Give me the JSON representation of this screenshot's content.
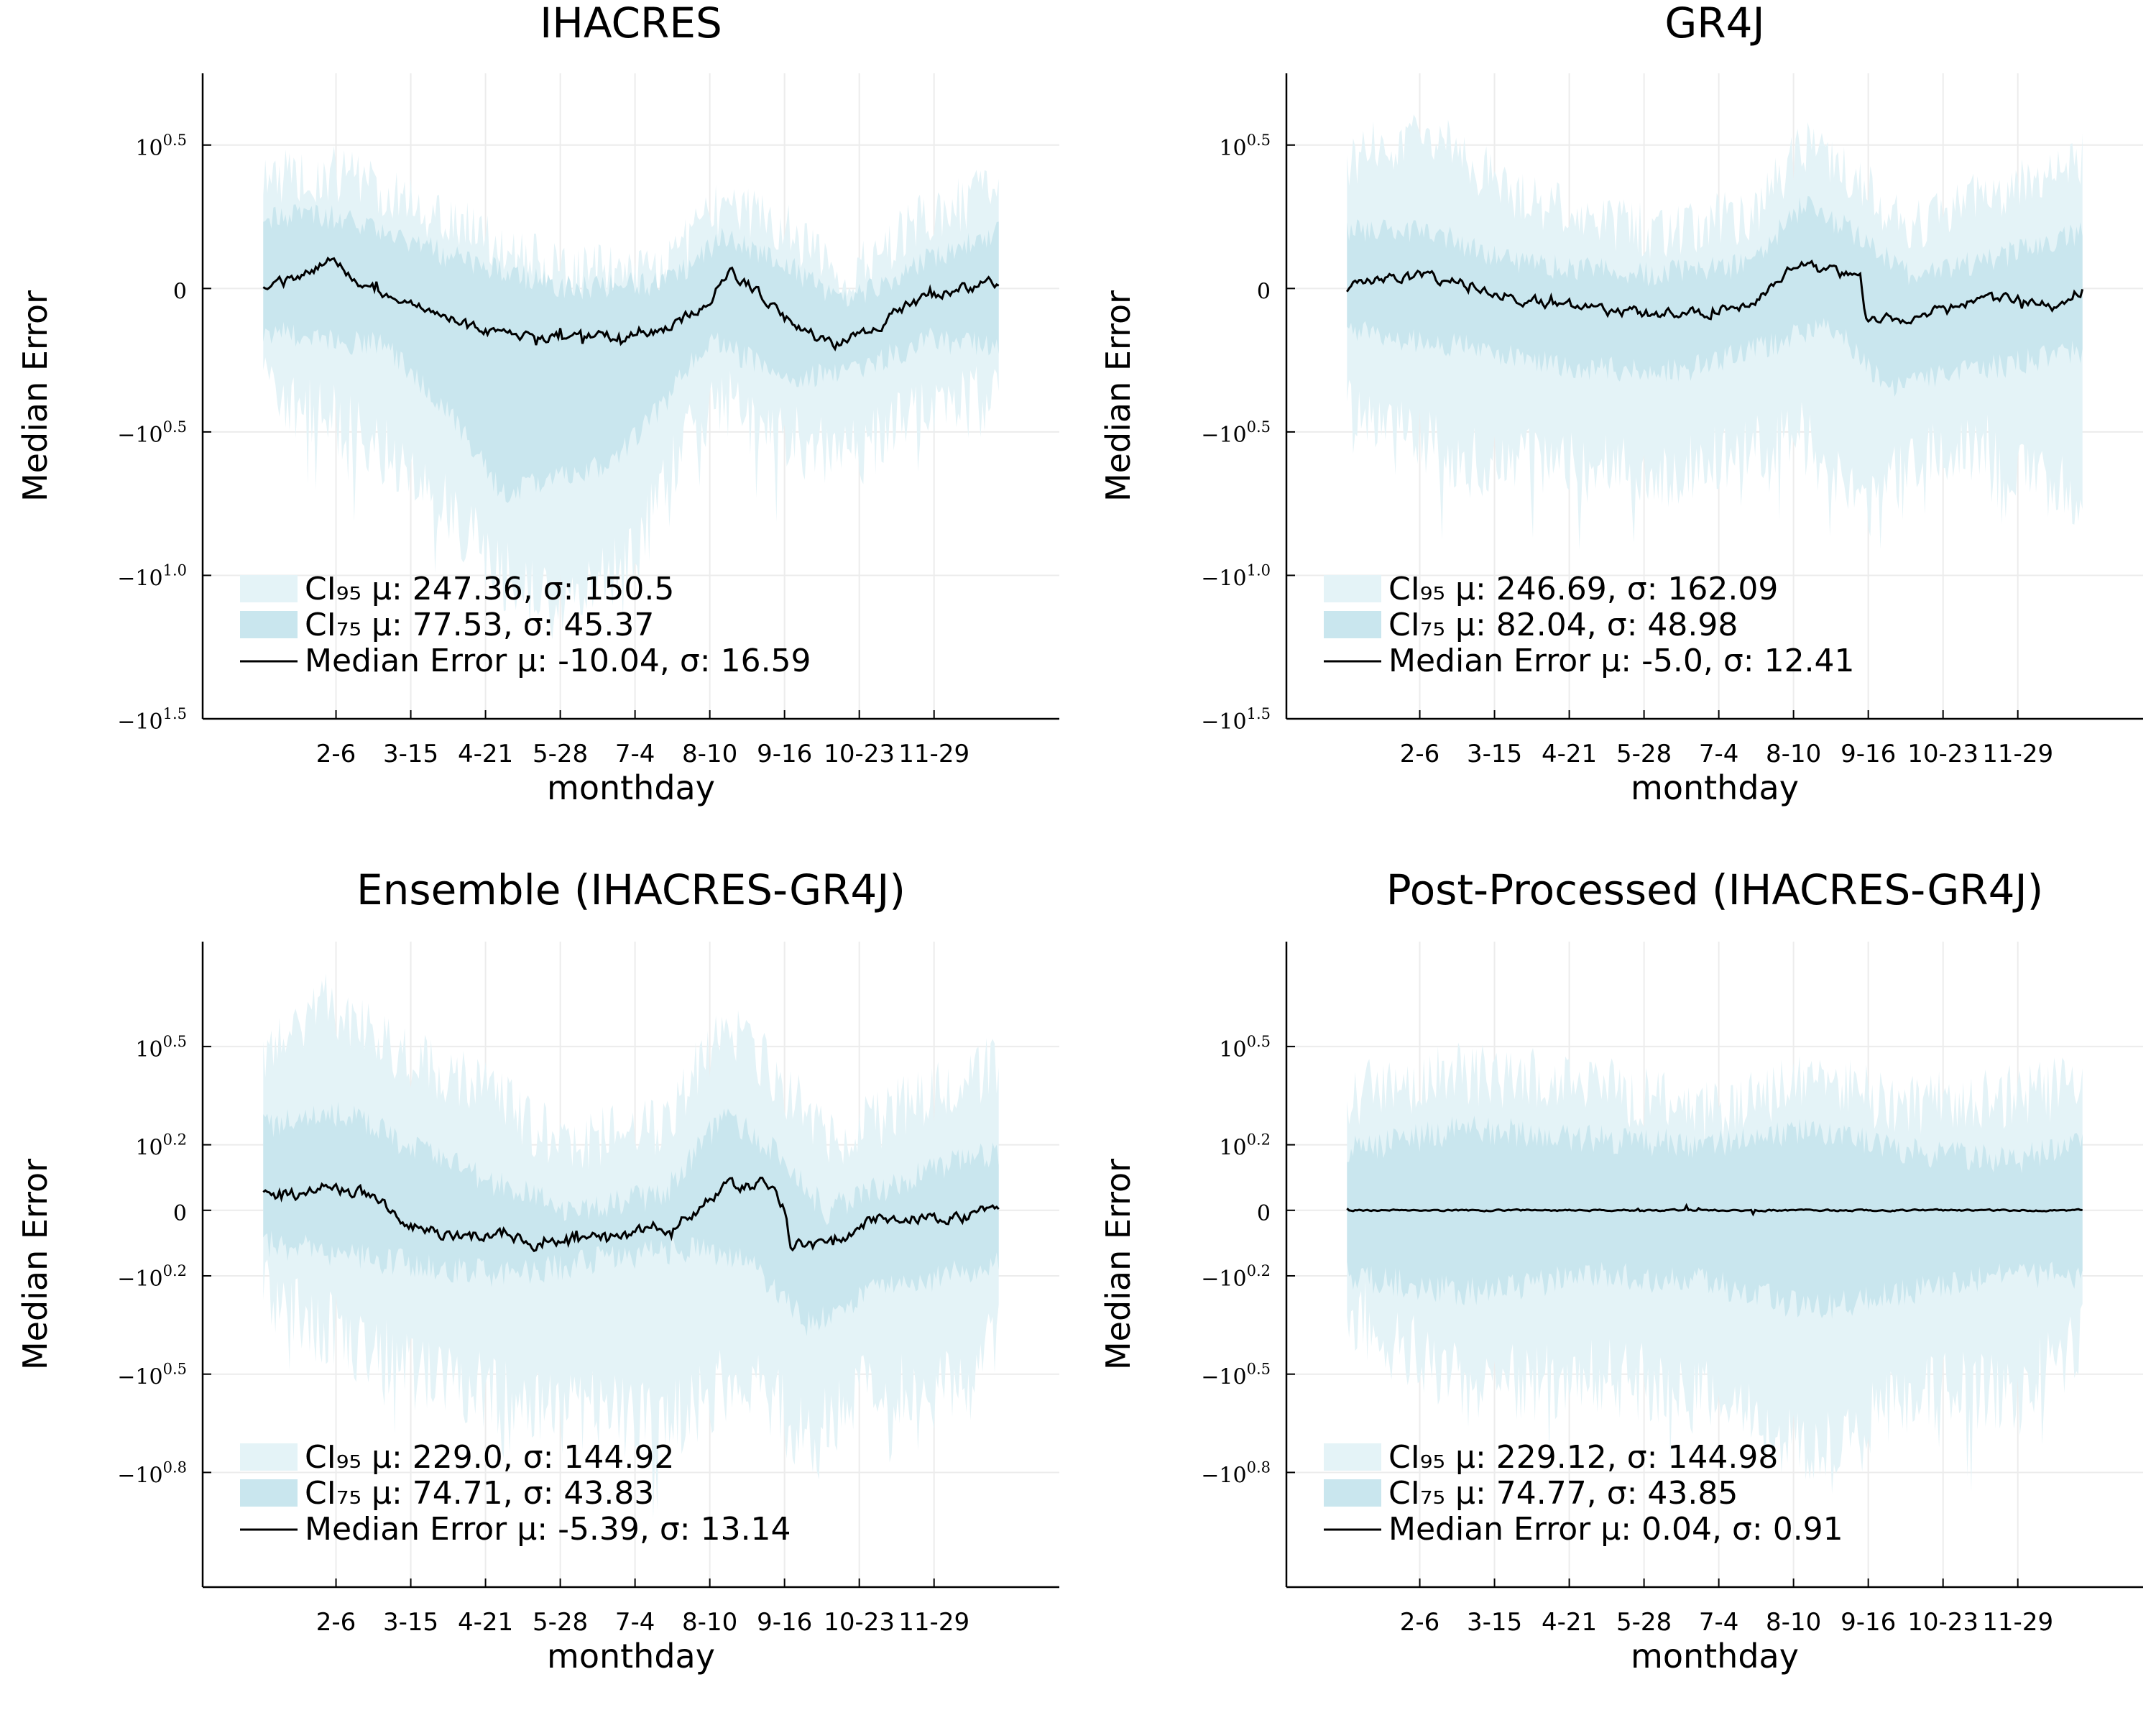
{
  "figure": {
    "xlabel": "monthday",
    "ylabel": "Median Error",
    "x_ticks": [
      "2-6",
      "3-15",
      "4-21",
      "5-28",
      "7-4",
      "8-10",
      "9-16",
      "10-23",
      "11-29"
    ],
    "colors": {
      "ci95": "#e4f3f7",
      "ci75": "#c9e6ee",
      "median": "#000000",
      "grid": "#ececec"
    }
  },
  "chart_data": [
    {
      "type": "area",
      "title": "IHACRES",
      "xlabel": "monthday",
      "ylabel": "Median Error",
      "x_ticks": [
        "2-6",
        "3-15",
        "4-21",
        "5-28",
        "7-4",
        "8-10",
        "9-16",
        "10-23",
        "11-29"
      ],
      "y_ticks": [
        {
          "base": "10",
          "exp": "0.5",
          "neg": false,
          "v": 0.5
        },
        {
          "base": "0",
          "exp": "",
          "neg": false,
          "v": 0
        },
        {
          "base": "−10",
          "exp": "0.5",
          "neg": true,
          "v": -0.5
        },
        {
          "base": "−10",
          "exp": "1.0",
          "neg": true,
          "v": -1.0
        },
        {
          "base": "−10",
          "exp": "1.5",
          "neg": true,
          "v": -1.5
        }
      ],
      "ylim": [
        -1.5,
        0.75
      ],
      "legend": {
        "placement": "bottom-left",
        "ci95": {
          "label": "CI₉₅ μ: 247.36, σ: 150.5"
        },
        "ci75": {
          "label": "CI₇₅ μ: 77.53, σ: 45.37"
        },
        "median": {
          "label": "Median Error μ: -10.04, σ: 16.59"
        }
      },
      "series": {
        "median_knots": [
          [
            1,
            0.0
          ],
          [
            20,
            0.05
          ],
          [
            37,
            0.1
          ],
          [
            50,
            0.0
          ],
          [
            70,
            -0.05
          ],
          [
            90,
            -0.1
          ],
          [
            110,
            -0.15
          ],
          [
            140,
            -0.17
          ],
          [
            170,
            -0.17
          ],
          [
            200,
            -0.14
          ],
          [
            210,
            -0.1
          ],
          [
            222,
            -0.03
          ],
          [
            232,
            0.05
          ],
          [
            242,
            0.01
          ],
          [
            255,
            -0.08
          ],
          [
            270,
            -0.15
          ],
          [
            282,
            -0.2
          ],
          [
            300,
            -0.15
          ],
          [
            320,
            -0.06
          ],
          [
            345,
            0.0
          ],
          [
            365,
            0.02
          ]
        ],
        "ci75_upper": [
          [
            1,
            0.25
          ],
          [
            40,
            0.25
          ],
          [
            90,
            0.12
          ],
          [
            150,
            0.0
          ],
          [
            200,
            0.02
          ],
          [
            230,
            0.18
          ],
          [
            260,
            0.08
          ],
          [
            290,
            -0.05
          ],
          [
            330,
            0.1
          ],
          [
            365,
            0.2
          ]
        ],
        "ci75_lower": [
          [
            1,
            -0.15
          ],
          [
            60,
            -0.2
          ],
          [
            90,
            -0.4
          ],
          [
            120,
            -0.72
          ],
          [
            150,
            -0.65
          ],
          [
            175,
            -0.6
          ],
          [
            200,
            -0.4
          ],
          [
            220,
            -0.18
          ],
          [
            260,
            -0.3
          ],
          [
            290,
            -0.3
          ],
          [
            330,
            -0.18
          ],
          [
            365,
            -0.2
          ]
        ],
        "ci95_upper": [
          [
            1,
            0.38
          ],
          [
            40,
            0.4
          ],
          [
            90,
            0.25
          ],
          [
            150,
            0.05
          ],
          [
            200,
            0.07
          ],
          [
            230,
            0.3
          ],
          [
            260,
            0.2
          ],
          [
            290,
            0.03
          ],
          [
            330,
            0.25
          ],
          [
            365,
            0.35
          ]
        ],
        "ci95_lower": [
          [
            1,
            -0.35
          ],
          [
            50,
            -0.5
          ],
          [
            90,
            -0.75
          ],
          [
            120,
            -1.0
          ],
          [
            145,
            -1.1
          ],
          [
            165,
            -1.05
          ],
          [
            185,
            -0.92
          ],
          [
            200,
            -0.65
          ],
          [
            225,
            -0.38
          ],
          [
            270,
            -0.55
          ],
          [
            300,
            -0.55
          ],
          [
            335,
            -0.38
          ],
          [
            365,
            -0.4
          ]
        ],
        "noise_seed": 11
      }
    },
    {
      "type": "area",
      "title": "GR4J",
      "xlabel": "monthday",
      "ylabel": "Median Error",
      "x_ticks": [
        "2-6",
        "3-15",
        "4-21",
        "5-28",
        "7-4",
        "8-10",
        "9-16",
        "10-23",
        "11-29"
      ],
      "y_ticks": [
        {
          "base": "10",
          "exp": "0.5",
          "neg": false,
          "v": 0.5
        },
        {
          "base": "0",
          "exp": "",
          "neg": false,
          "v": 0
        },
        {
          "base": "−10",
          "exp": "0.5",
          "neg": true,
          "v": -0.5
        },
        {
          "base": "−10",
          "exp": "1.0",
          "neg": true,
          "v": -1.0
        },
        {
          "base": "−10",
          "exp": "1.5",
          "neg": true,
          "v": -1.5
        }
      ],
      "ylim": [
        -1.5,
        0.75
      ],
      "legend": {
        "placement": "bottom-left",
        "ci95": {
          "label": "CI₉₅ μ: 246.69, σ: 162.09"
        },
        "ci75": {
          "label": "CI₇₅ μ: 82.04, σ: 48.98"
        },
        "median": {
          "label": "Median Error μ: -5.0, σ: 12.41"
        }
      },
      "series": {
        "median_knots": [
          [
            1,
            0.0
          ],
          [
            30,
            0.05
          ],
          [
            50,
            0.03
          ],
          [
            70,
            0.0
          ],
          [
            90,
            -0.04
          ],
          [
            120,
            -0.07
          ],
          [
            150,
            -0.09
          ],
          [
            180,
            -0.08
          ],
          [
            200,
            -0.05
          ],
          [
            210,
            0.0
          ],
          [
            222,
            0.08
          ],
          [
            240,
            0.06
          ],
          [
            255,
            0.03
          ],
          [
            258,
            -0.1
          ],
          [
            280,
            -0.12
          ],
          [
            300,
            -0.05
          ],
          [
            330,
            -0.04
          ],
          [
            350,
            -0.06
          ],
          [
            365,
            0.0
          ]
        ],
        "ci75_upper": [
          [
            1,
            0.2
          ],
          [
            40,
            0.2
          ],
          [
            90,
            0.08
          ],
          [
            150,
            0.05
          ],
          [
            200,
            0.08
          ],
          [
            228,
            0.3
          ],
          [
            250,
            0.2
          ],
          [
            280,
            0.05
          ],
          [
            320,
            0.1
          ],
          [
            365,
            0.2
          ]
        ],
        "ci75_lower": [
          [
            1,
            -0.15
          ],
          [
            60,
            -0.2
          ],
          [
            120,
            -0.28
          ],
          [
            170,
            -0.28
          ],
          [
            210,
            -0.2
          ],
          [
            240,
            -0.12
          ],
          [
            270,
            -0.35
          ],
          [
            300,
            -0.3
          ],
          [
            340,
            -0.25
          ],
          [
            365,
            -0.22
          ]
        ],
        "ci95_upper": [
          [
            1,
            0.45
          ],
          [
            40,
            0.55
          ],
          [
            90,
            0.3
          ],
          [
            150,
            0.2
          ],
          [
            200,
            0.25
          ],
          [
            228,
            0.5
          ],
          [
            250,
            0.38
          ],
          [
            280,
            0.22
          ],
          [
            330,
            0.35
          ],
          [
            365,
            0.45
          ]
        ],
        "ci95_lower": [
          [
            1,
            -0.4
          ],
          [
            60,
            -0.6
          ],
          [
            110,
            -0.62
          ],
          [
            160,
            -0.65
          ],
          [
            200,
            -0.55
          ],
          [
            230,
            -0.5
          ],
          [
            258,
            -0.8
          ],
          [
            280,
            -0.6
          ],
          [
            320,
            -0.55
          ],
          [
            365,
            -0.75
          ]
        ],
        "noise_seed": 23
      }
    },
    {
      "type": "area",
      "title": "Ensemble (IHACRES-GR4J)",
      "xlabel": "monthday",
      "ylabel": "Median Error",
      "x_ticks": [
        "2-6",
        "3-15",
        "4-21",
        "5-28",
        "7-4",
        "8-10",
        "9-16",
        "10-23",
        "11-29"
      ],
      "y_ticks": [
        {
          "base": "10",
          "exp": "0.5",
          "neg": false,
          "v": 0.5
        },
        {
          "base": "10",
          "exp": "0.2",
          "neg": false,
          "v": 0.2
        },
        {
          "base": "0",
          "exp": "",
          "neg": false,
          "v": 0
        },
        {
          "base": "−10",
          "exp": "0.2",
          "neg": true,
          "v": -0.2
        },
        {
          "base": "−10",
          "exp": "0.5",
          "neg": true,
          "v": -0.5
        },
        {
          "base": "−10",
          "exp": "0.8",
          "neg": true,
          "v": -0.8
        }
      ],
      "ylim": [
        -1.15,
        0.82
      ],
      "legend": {
        "placement": "bottom-left",
        "ci95": {
          "label": "CI₉₅ μ: 229.0, σ: 144.92"
        },
        "ci75": {
          "label": "CI₇₅ μ: 74.71, σ: 43.83"
        },
        "median": {
          "label": "Median Error μ: -5.39, σ: 13.14"
        }
      },
      "series": {
        "median_knots": [
          [
            1,
            0.05
          ],
          [
            20,
            0.05
          ],
          [
            30,
            0.08
          ],
          [
            50,
            0.05
          ],
          [
            65,
            0.0
          ],
          [
            75,
            -0.05
          ],
          [
            90,
            -0.07
          ],
          [
            120,
            -0.08
          ],
          [
            135,
            -0.1
          ],
          [
            160,
            -0.08
          ],
          [
            180,
            -0.08
          ],
          [
            200,
            -0.06
          ],
          [
            215,
            0.0
          ],
          [
            230,
            0.07
          ],
          [
            248,
            0.08
          ],
          [
            258,
            0.02
          ],
          [
            262,
            -0.1
          ],
          [
            280,
            -0.11
          ],
          [
            300,
            -0.03
          ],
          [
            320,
            -0.02
          ],
          [
            345,
            -0.03
          ],
          [
            365,
            0.01
          ]
        ],
        "ci75_upper": [
          [
            1,
            0.25
          ],
          [
            40,
            0.3
          ],
          [
            90,
            0.15
          ],
          [
            150,
            0.0
          ],
          [
            200,
            0.05
          ],
          [
            230,
            0.3
          ],
          [
            250,
            0.2
          ],
          [
            280,
            0.0
          ],
          [
            330,
            0.12
          ],
          [
            365,
            0.18
          ]
        ],
        "ci75_lower": [
          [
            1,
            -0.1
          ],
          [
            60,
            -0.15
          ],
          [
            120,
            -0.2
          ],
          [
            170,
            -0.15
          ],
          [
            210,
            -0.12
          ],
          [
            240,
            -0.15
          ],
          [
            270,
            -0.35
          ],
          [
            300,
            -0.25
          ],
          [
            340,
            -0.2
          ],
          [
            365,
            -0.15
          ]
        ],
        "ci95_upper": [
          [
            1,
            0.45
          ],
          [
            30,
            0.65
          ],
          [
            60,
            0.5
          ],
          [
            100,
            0.4
          ],
          [
            150,
            0.2
          ],
          [
            200,
            0.25
          ],
          [
            230,
            0.58
          ],
          [
            250,
            0.45
          ],
          [
            280,
            0.2
          ],
          [
            330,
            0.35
          ],
          [
            365,
            0.45
          ]
        ],
        "ci95_lower": [
          [
            1,
            -0.25
          ],
          [
            60,
            -0.45
          ],
          [
            110,
            -0.55
          ],
          [
            150,
            -0.6
          ],
          [
            200,
            -0.65
          ],
          [
            240,
            -0.5
          ],
          [
            270,
            -0.7
          ],
          [
            300,
            -0.55
          ],
          [
            340,
            -0.55
          ],
          [
            365,
            -0.4
          ]
        ],
        "noise_seed": 37
      }
    },
    {
      "type": "area",
      "title": "Post-Processed (IHACRES-GR4J)",
      "xlabel": "monthday",
      "ylabel": "Median Error",
      "x_ticks": [
        "2-6",
        "3-15",
        "4-21",
        "5-28",
        "7-4",
        "8-10",
        "9-16",
        "10-23",
        "11-29"
      ],
      "y_ticks": [
        {
          "base": "10",
          "exp": "0.5",
          "neg": false,
          "v": 0.5
        },
        {
          "base": "10",
          "exp": "0.2",
          "neg": false,
          "v": 0.2
        },
        {
          "base": "0",
          "exp": "",
          "neg": false,
          "v": 0
        },
        {
          "base": "−10",
          "exp": "0.2",
          "neg": true,
          "v": -0.2
        },
        {
          "base": "−10",
          "exp": "0.5",
          "neg": true,
          "v": -0.5
        },
        {
          "base": "−10",
          "exp": "0.8",
          "neg": true,
          "v": -0.8
        }
      ],
      "ylim": [
        -1.15,
        0.82
      ],
      "legend": {
        "placement": "bottom-left",
        "ci95": {
          "label": "CI₉₅ μ: 229.12, σ: 144.98"
        },
        "ci75": {
          "label": "CI₇₅ μ: 74.77, σ: 43.85"
        },
        "median": {
          "label": "Median Error μ: 0.04, σ: 0.91"
        }
      },
      "series": {
        "median_knots": [
          [
            1,
            0.0
          ],
          [
            365,
            0.0
          ]
        ],
        "ci75_upper": [
          [
            1,
            0.18
          ],
          [
            60,
            0.25
          ],
          [
            120,
            0.22
          ],
          [
            180,
            0.2
          ],
          [
            230,
            0.25
          ],
          [
            280,
            0.18
          ],
          [
            330,
            0.15
          ],
          [
            365,
            0.2
          ]
        ],
        "ci75_lower": [
          [
            1,
            -0.2
          ],
          [
            60,
            -0.25
          ],
          [
            120,
            -0.2
          ],
          [
            180,
            -0.22
          ],
          [
            230,
            -0.3
          ],
          [
            280,
            -0.25
          ],
          [
            330,
            -0.2
          ],
          [
            365,
            -0.2
          ]
        ],
        "ci95_upper": [
          [
            1,
            0.35
          ],
          [
            60,
            0.42
          ],
          [
            120,
            0.38
          ],
          [
            180,
            0.3
          ],
          [
            230,
            0.4
          ],
          [
            280,
            0.32
          ],
          [
            330,
            0.35
          ],
          [
            365,
            0.38
          ]
        ],
        "ci95_lower": [
          [
            1,
            -0.3
          ],
          [
            60,
            -0.55
          ],
          [
            120,
            -0.5
          ],
          [
            180,
            -0.55
          ],
          [
            230,
            -0.75
          ],
          [
            280,
            -0.55
          ],
          [
            330,
            -0.55
          ],
          [
            365,
            -0.4
          ]
        ],
        "noise_seed": 53
      }
    }
  ]
}
